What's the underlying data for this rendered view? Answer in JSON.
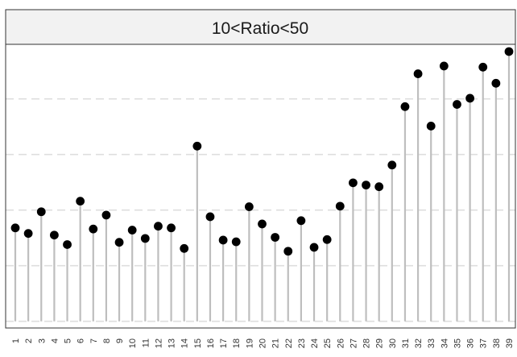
{
  "chart_data": {
    "type": "lollipop",
    "facet_label": "10<Ratio<50",
    "categories": [
      "1",
      "2",
      "3",
      "4",
      "5",
      "6",
      "7",
      "8",
      "9",
      "10",
      "11",
      "12",
      "13",
      "14",
      "15",
      "16",
      "17",
      "18",
      "19",
      "20",
      "21",
      "22",
      "23",
      "24",
      "25",
      "26",
      "27",
      "28",
      "29",
      "30",
      "31",
      "32",
      "33",
      "34",
      "35",
      "36",
      "37",
      "38",
      "39"
    ],
    "values": [
      1.68,
      1.58,
      1.97,
      1.55,
      1.38,
      2.16,
      1.66,
      1.91,
      1.42,
      1.64,
      1.49,
      1.71,
      1.68,
      1.31,
      3.15,
      1.88,
      1.46,
      1.43,
      2.06,
      1.75,
      1.51,
      1.26,
      1.81,
      1.33,
      1.47,
      2.07,
      2.49,
      2.45,
      2.42,
      2.81,
      3.86,
      4.45,
      3.51,
      4.59,
      3.9,
      4.01,
      4.57,
      4.28,
      4.85
    ],
    "ylim": [
      -0.12,
      4.98
    ],
    "y_gridlines": [
      0,
      1,
      2,
      3,
      4
    ],
    "grid": true,
    "colors": {
      "stem": "#bebebe",
      "point": "#000000",
      "grid": "#dedede",
      "strip_fill": "#f2f2f2",
      "panel_border": "#333333"
    }
  }
}
